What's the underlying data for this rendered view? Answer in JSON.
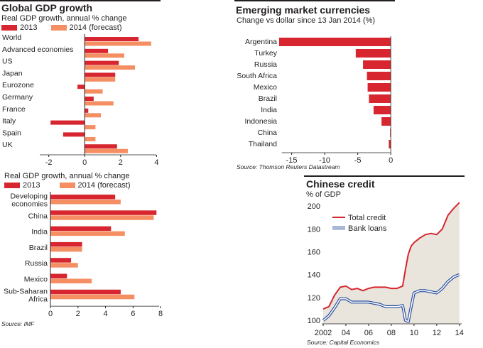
{
  "colors": {
    "y2013": "#d7262f",
    "y2014": "#f58f63",
    "credit_fill": "#e9e5dc",
    "total_credit": "#d7262f",
    "bank_loans": "#2a4f9e"
  },
  "source_ft": "Source: IMF",
  "chart_data": [
    {
      "type": "bar",
      "orientation": "horizontal",
      "title": "Global GDP growth",
      "subtitle": "Real GDP growth, annual % change",
      "legend": [
        "2013",
        "2014 (forecast)"
      ],
      "categories": [
        "World",
        "Advanced economies",
        "US",
        "Japan",
        "Eurozone",
        "Germany",
        "France",
        "Italy",
        "Spain",
        "UK"
      ],
      "series": [
        {
          "name": "2013",
          "values": [
            3.0,
            1.3,
            1.9,
            1.7,
            -0.4,
            0.5,
            0.2,
            -1.9,
            -1.2,
            1.8
          ]
        },
        {
          "name": "2014 (forecast)",
          "values": [
            3.7,
            2.2,
            2.8,
            1.7,
            1.0,
            1.6,
            0.9,
            0.6,
            0.6,
            2.4
          ]
        }
      ],
      "xlim": [
        -2.5,
        4.3
      ],
      "xticks": [
        "-2",
        "0",
        "2",
        "4"
      ],
      "xtick_values": [
        -2,
        0,
        2,
        4
      ]
    },
    {
      "type": "bar",
      "orientation": "horizontal",
      "subtitle": "Real GDP growth, annual % change",
      "legend": [
        "2013",
        "2014 (forecast)"
      ],
      "categories": [
        [
          "Developing",
          "economies"
        ],
        [
          "China"
        ],
        [
          "India"
        ],
        [
          "Brazil"
        ],
        [
          "Russia"
        ],
        [
          "Mexico"
        ],
        [
          "Sub-Saharan",
          "Africa"
        ]
      ],
      "series": [
        {
          "name": "2013",
          "values": [
            4.7,
            7.7,
            4.4,
            2.3,
            1.5,
            1.2,
            5.1
          ]
        },
        {
          "name": "2014 (forecast)",
          "values": [
            5.1,
            7.5,
            5.4,
            2.3,
            2.0,
            3.0,
            6.1
          ]
        }
      ],
      "xlim": [
        0,
        8.2
      ],
      "xticks": [
        "0",
        "2",
        "4",
        "6",
        "8"
      ],
      "xtick_values": [
        0,
        2,
        4,
        6,
        8
      ],
      "source": "Source: IMF"
    },
    {
      "type": "bar",
      "orientation": "horizontal",
      "title": "Emerging market currencies",
      "subtitle": "Change vs dollar since 13 Jan 2014 (%)",
      "categories": [
        "Argentina",
        "Turkey",
        "Russia",
        "South Africa",
        "Mexico",
        "Brazil",
        "India",
        "Indonesia",
        "China",
        "Thailand"
      ],
      "values": [
        -16.9,
        -5.3,
        -4.2,
        -3.6,
        -3.5,
        -3.3,
        -2.6,
        -1.4,
        -0.1,
        -0.3
      ],
      "xlim": [
        -17,
        0.2
      ],
      "xticks": [
        "-15",
        "-10",
        "-5",
        "0"
      ],
      "xtick_values": [
        -15,
        -10,
        -5,
        0
      ],
      "source": "Source: Thomson Reuters Datastream"
    },
    {
      "type": "line",
      "title": "Chinese credit",
      "ylabel": "% of GDP",
      "legend": [
        "Total credit",
        "Bank loans"
      ],
      "x": [
        2002.0,
        2002.5,
        2003.0,
        2003.5,
        2004.0,
        2004.5,
        2005.0,
        2005.5,
        2006.0,
        2006.5,
        2007.0,
        2007.5,
        2008.0,
        2008.5,
        2009.0,
        2009.25,
        2009.5,
        2009.75,
        2010.0,
        2010.5,
        2011.0,
        2011.5,
        2012.0,
        2012.5,
        2013.0,
        2013.5,
        2014.0
      ],
      "series": [
        {
          "name": "Total credit",
          "values": [
            110,
            112,
            122,
            129,
            130,
            127,
            128,
            126,
            128,
            129,
            129,
            129,
            128,
            128,
            130,
            145,
            158,
            165,
            168,
            172,
            175,
            176,
            175,
            180,
            192,
            198,
            203
          ]
        },
        {
          "name": "Bank loans",
          "values": [
            100,
            104,
            111,
            119,
            119,
            116,
            116,
            116,
            116,
            115,
            114,
            112,
            112,
            112,
            113,
            100,
            99,
            112,
            124,
            126,
            126,
            125,
            124,
            128,
            134,
            138,
            140
          ]
        }
      ],
      "ylim": [
        97,
        205
      ],
      "yticks": [
        "100",
        "120",
        "140",
        "160",
        "180",
        "200"
      ],
      "ytick_values": [
        100,
        120,
        140,
        160,
        180,
        200
      ],
      "xticks": [
        "2002",
        "04",
        "06",
        "08",
        "10",
        "12",
        "14"
      ],
      "xtick_values": [
        2002,
        2004,
        2006,
        2008,
        2010,
        2012,
        2014
      ],
      "source": "Source: Capital Economics"
    }
  ]
}
